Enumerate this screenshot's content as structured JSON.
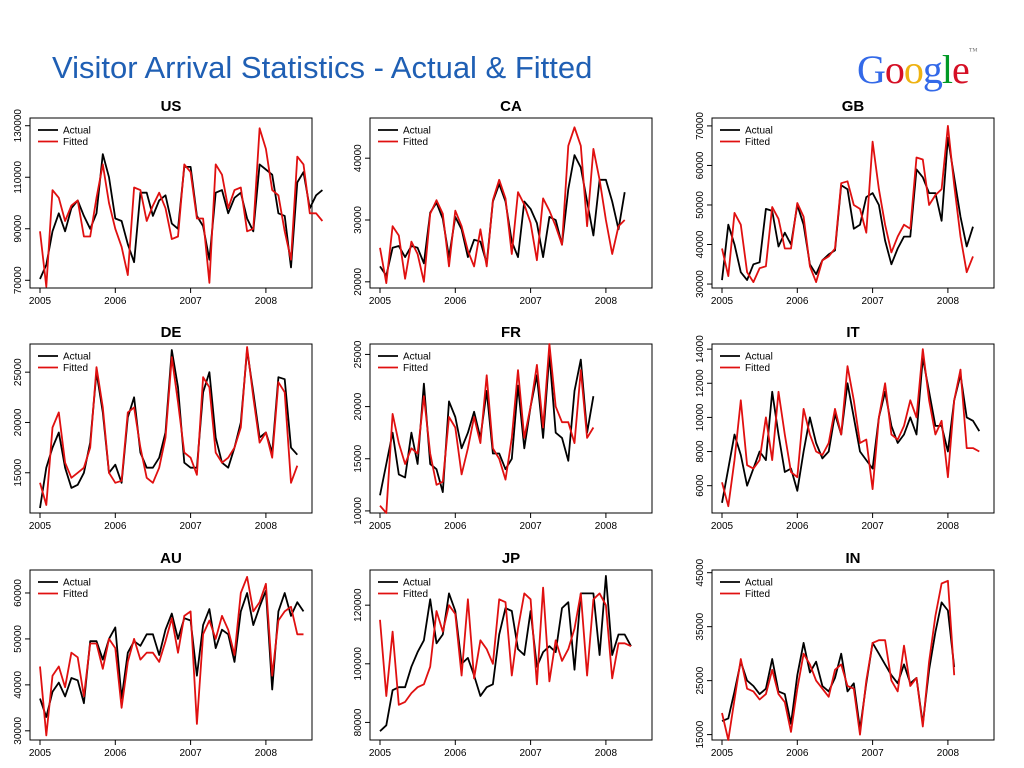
{
  "slide": {
    "title": "Visitor Arrival Statistics - Actual & Fitted",
    "logo_text": "Google",
    "logo_colors": [
      "#3369e8",
      "#d50f25",
      "#eeb211",
      "#3369e8",
      "#009925",
      "#d50f25"
    ]
  },
  "colors": {
    "actual": "#000000",
    "fitted": "#e01010"
  },
  "chart_data": [
    {
      "type": "line",
      "title": "US",
      "x_ticks": [
        "2005",
        "2006",
        "2007",
        "2008"
      ],
      "y_ticks": [
        70000,
        90000,
        110000,
        130000
      ],
      "ylim": [
        67000,
        133000
      ],
      "x_start": 2005,
      "x_step_months": 1,
      "legend": [
        "Actual",
        "Fitted"
      ],
      "legend_position": "top-left",
      "series": [
        {
          "name": "Actual",
          "values": [
            70500,
            76000,
            89000,
            96000,
            89000,
            98000,
            101000,
            95000,
            90000,
            96000,
            119000,
            110000,
            94000,
            93000,
            84000,
            77000,
            104000,
            104000,
            95000,
            101000,
            103000,
            92000,
            90000,
            114000,
            114000,
            95000,
            91000,
            78000,
            104000,
            105000,
            96000,
            102000,
            104000,
            94000,
            89000,
            115000,
            113000,
            111000,
            96000,
            95000,
            75000,
            108000,
            112000,
            98000,
            103000,
            105000
          ]
        },
        {
          "name": "Fitted",
          "values": [
            89000,
            67500,
            105000,
            102000,
            93000,
            99000,
            101000,
            87000,
            87000,
            102000,
            115000,
            100000,
            90000,
            83000,
            72000,
            106000,
            105000,
            93000,
            99000,
            104000,
            98000,
            86000,
            87000,
            115000,
            112000,
            94000,
            94000,
            69000,
            115000,
            111000,
            98000,
            105000,
            106000,
            89000,
            90000,
            129000,
            121000,
            105000,
            103000,
            89000,
            78000,
            118000,
            115000,
            96000,
            96000,
            93000
          ]
        }
      ]
    },
    {
      "type": "line",
      "title": "CA",
      "x_ticks": [
        "2005",
        "2006",
        "2007",
        "2008"
      ],
      "y_ticks": [
        20000,
        30000,
        40000
      ],
      "ylim": [
        19000,
        46500
      ],
      "x_start": 2005,
      "x_step_months": 1,
      "legend": [
        "Actual",
        "Fitted"
      ],
      "legend_position": "top-left",
      "series": [
        {
          "name": "Actual",
          "values": [
            22500,
            21000,
            25500,
            25800,
            24000,
            25800,
            25500,
            23000,
            31200,
            32800,
            30200,
            24000,
            30500,
            28500,
            24000,
            26800,
            26500,
            23000,
            33000,
            35800,
            33000,
            26500,
            24000,
            33000,
            31800,
            29500,
            24000,
            30500,
            30000,
            26000,
            35000,
            40500,
            38500,
            33000,
            27500,
            36500,
            36500,
            33000,
            28500,
            34500
          ]
        },
        {
          "name": "Fitted",
          "values": [
            25500,
            19800,
            29000,
            27500,
            20500,
            26500,
            24500,
            20000,
            31000,
            33200,
            31000,
            22500,
            31500,
            29000,
            25000,
            22500,
            28500,
            22500,
            33200,
            36500,
            33500,
            24500,
            34500,
            32500,
            29500,
            23500,
            33500,
            31500,
            29000,
            26000,
            42000,
            45000,
            42000,
            29000,
            41500,
            36500,
            30000,
            24500,
            29000,
            30000
          ]
        }
      ]
    },
    {
      "type": "line",
      "title": "GB",
      "x_ticks": [
        "2005",
        "2006",
        "2007",
        "2008"
      ],
      "y_ticks": [
        30000,
        40000,
        50000,
        60000,
        70000
      ],
      "ylim": [
        29000,
        72000
      ],
      "x_start": 2005,
      "x_step_months": 1,
      "legend": [
        "Actual",
        "Fitted"
      ],
      "legend_position": "top-left",
      "series": [
        {
          "name": "Actual",
          "values": [
            31000,
            45000,
            40000,
            33000,
            31000,
            35000,
            35500,
            49000,
            48500,
            39500,
            43000,
            40000,
            50000,
            45000,
            35000,
            32500,
            36000,
            37500,
            38500,
            55000,
            54000,
            44000,
            45000,
            52000,
            53000,
            50000,
            41000,
            35000,
            39000,
            42000,
            42000,
            59000,
            57000,
            53000,
            53000,
            46000,
            67000,
            57000,
            47000,
            39500,
            44500
          ]
        },
        {
          "name": "Fitted",
          "values": [
            39000,
            32000,
            48000,
            45000,
            33000,
            30500,
            34000,
            34500,
            49500,
            46500,
            39000,
            39000,
            50500,
            47000,
            34500,
            30500,
            36000,
            37000,
            39000,
            55500,
            56000,
            50000,
            49000,
            43000,
            66000,
            54000,
            45000,
            38000,
            42000,
            45000,
            44000,
            62000,
            61500,
            50000,
            52500,
            54000,
            70000,
            55000,
            42000,
            33000,
            37000
          ]
        }
      ]
    },
    {
      "type": "line",
      "title": "DE",
      "x_ticks": [
        "2005",
        "2006",
        "2007",
        "2008"
      ],
      "y_ticks": [
        15000,
        20000,
        25000
      ],
      "ylim": [
        11000,
        27800
      ],
      "x_start": 2005,
      "x_step_months": 1,
      "legend": [
        "Actual",
        "Fitted"
      ],
      "legend_position": "top-left",
      "series": [
        {
          "name": "Actual",
          "values": [
            11500,
            15500,
            17500,
            19000,
            15500,
            13500,
            13800,
            15000,
            18000,
            25000,
            21000,
            15000,
            15800,
            14000,
            20500,
            22500,
            17000,
            15500,
            15500,
            16500,
            19000,
            27200,
            23500,
            16000,
            15500,
            15500,
            23000,
            25000,
            18500,
            16000,
            15500,
            17500,
            20000,
            27200,
            23000,
            18500,
            19000,
            17000,
            24500,
            24300,
            17500,
            16800
          ]
        },
        {
          "name": "Fitted",
          "values": [
            14000,
            11800,
            19500,
            21000,
            16000,
            14500,
            15000,
            15500,
            17500,
            25500,
            21500,
            15000,
            14000,
            14200,
            21000,
            21500,
            17500,
            14500,
            14000,
            15500,
            18500,
            26500,
            22000,
            17000,
            16500,
            14800,
            24500,
            23500,
            17000,
            16000,
            16500,
            17500,
            19500,
            27500,
            22500,
            18000,
            19000,
            16500,
            24000,
            23000,
            14000,
            15700
          ]
        }
      ]
    },
    {
      "type": "line",
      "title": "FR",
      "x_ticks": [
        "2005",
        "2006",
        "2007",
        "2008"
      ],
      "y_ticks": [
        10000,
        15000,
        20000,
        25000
      ],
      "ylim": [
        9800,
        26000
      ],
      "x_start": 2005,
      "x_step_months": 1,
      "legend": [
        "Actual",
        "Fitted"
      ],
      "legend_position": "top-left",
      "series": [
        {
          "name": "Actual",
          "values": [
            11500,
            14500,
            17500,
            13500,
            13200,
            17500,
            14500,
            22200,
            14500,
            14000,
            11800,
            20500,
            19000,
            16000,
            17500,
            19500,
            17000,
            21500,
            15500,
            15500,
            14000,
            15000,
            22000,
            16000,
            20000,
            23000,
            17000,
            25000,
            17500,
            17000,
            14800,
            21500,
            24500,
            17500,
            21000
          ]
        },
        {
          "name": "Fitted",
          "values": [
            10500,
            9800,
            19300,
            16500,
            14500,
            16000,
            15500,
            21000,
            15500,
            12500,
            12800,
            19000,
            18000,
            13500,
            16000,
            19000,
            16500,
            23000,
            16000,
            15000,
            13000,
            17000,
            23500,
            17000,
            20000,
            24000,
            18000,
            26000,
            20000,
            18500,
            18500,
            16500,
            23500,
            17000,
            18000
          ]
        }
      ]
    },
    {
      "type": "line",
      "title": "IT",
      "x_ticks": [
        "2005",
        "2006",
        "2007",
        "2008"
      ],
      "y_ticks": [
        6000,
        8000,
        10000,
        12000,
        14000
      ],
      "ylim": [
        4400,
        14300
      ],
      "x_start": 2005,
      "x_step_months": 1,
      "legend": [
        "Actual",
        "Fitted"
      ],
      "legend_position": "top-left",
      "series": [
        {
          "name": "Actual",
          "values": [
            5000,
            7000,
            9000,
            7800,
            6000,
            7000,
            8000,
            7500,
            11500,
            9000,
            6800,
            7000,
            5700,
            8000,
            10000,
            8500,
            7600,
            8000,
            10200,
            9000,
            12000,
            10000,
            8000,
            7500,
            7000,
            10000,
            11500,
            9500,
            8500,
            9000,
            10000,
            9000,
            13500,
            11500,
            9500,
            9500,
            8000,
            11000,
            12500,
            10000,
            9800,
            9200
          ]
        },
        {
          "name": "Fitted",
          "values": [
            6200,
            4800,
            7500,
            11000,
            7200,
            7000,
            7500,
            10000,
            7500,
            11500,
            9000,
            6800,
            6500,
            10500,
            9000,
            8000,
            7800,
            8500,
            10500,
            9000,
            13000,
            11000,
            8500,
            8700,
            5800,
            10000,
            12000,
            9000,
            8700,
            9500,
            11000,
            10000,
            14000,
            11000,
            9000,
            9800,
            6500,
            11000,
            12800,
            8200,
            8200,
            8000
          ]
        }
      ]
    },
    {
      "type": "line",
      "title": "AU",
      "x_ticks": [
        "2005",
        "2006",
        "2007",
        "2008"
      ],
      "y_ticks": [
        30000,
        40000,
        50000,
        60000
      ],
      "ylim": [
        28000,
        65000
      ],
      "x_start": 2005,
      "x_step_months": 1,
      "legend": [
        "Actual",
        "Fitted"
      ],
      "legend_position": "top-left",
      "series": [
        {
          "name": "Actual",
          "values": [
            37000,
            33000,
            38500,
            40500,
            37500,
            41500,
            41000,
            36000,
            49500,
            49500,
            45500,
            50000,
            52500,
            37000,
            47000,
            49500,
            48500,
            51000,
            51000,
            46500,
            52000,
            55500,
            50000,
            54500,
            54000,
            42000,
            53000,
            56500,
            48000,
            52000,
            51000,
            45000,
            56000,
            60000,
            53000,
            57000,
            60500,
            39000,
            56000,
            60000,
            55000,
            58000,
            56000
          ]
        },
        {
          "name": "Fitted",
          "values": [
            44000,
            29000,
            42000,
            44000,
            39500,
            47000,
            46000,
            37500,
            49000,
            49000,
            43500,
            50000,
            48000,
            35000,
            45000,
            50000,
            45500,
            47000,
            47000,
            45000,
            49500,
            54500,
            47000,
            55000,
            56000,
            31500,
            51000,
            54000,
            50000,
            55000,
            52000,
            46500,
            60000,
            63500,
            56000,
            58000,
            62000,
            42000,
            54000,
            56000,
            57000,
            51000,
            51000
          ]
        }
      ]
    },
    {
      "type": "line",
      "title": "JP",
      "x_ticks": [
        "2005",
        "2006",
        "2007",
        "2008"
      ],
      "y_ticks": [
        80000,
        100000,
        120000
      ],
      "ylim": [
        74000,
        132000
      ],
      "x_start": 2005,
      "x_step_months": 1,
      "legend": [
        "Actual",
        "Fitted"
      ],
      "legend_position": "top-left",
      "series": [
        {
          "name": "Actual",
          "values": [
            77000,
            79000,
            91000,
            92000,
            92000,
            99000,
            104000,
            108000,
            122000,
            107000,
            110000,
            124000,
            118000,
            100000,
            102000,
            96000,
            89000,
            92000,
            93000,
            110000,
            119000,
            118000,
            105000,
            103000,
            118000,
            99000,
            104000,
            106000,
            104000,
            119000,
            121000,
            98000,
            124000,
            124000,
            124000,
            103000,
            130000,
            103000,
            110000,
            110000,
            106000
          ]
        },
        {
          "name": "Fitted",
          "values": [
            115000,
            89000,
            111000,
            86000,
            87000,
            90000,
            92000,
            93000,
            99000,
            118000,
            111000,
            120000,
            117000,
            96000,
            122000,
            95000,
            108000,
            105000,
            100000,
            122000,
            121000,
            96000,
            112000,
            124000,
            122000,
            93000,
            126000,
            94000,
            108000,
            101000,
            105000,
            112000,
            124000,
            96000,
            122000,
            124000,
            120000,
            95000,
            107000,
            107000,
            106000
          ]
        }
      ]
    },
    {
      "type": "line",
      "title": "IN",
      "x_ticks": [
        "2005",
        "2006",
        "2007",
        "2008"
      ],
      "y_ticks": [
        15000,
        25000,
        35000,
        45000
      ],
      "ylim": [
        14000,
        45500
      ],
      "x_start": 2005,
      "x_step_months": 1,
      "legend": [
        "Actual",
        "Fitted"
      ],
      "legend_position": "top-left",
      "series": [
        {
          "name": "Actual",
          "values": [
            17500,
            18000,
            23000,
            28500,
            25000,
            24000,
            22500,
            23500,
            29000,
            23000,
            22500,
            17000,
            26000,
            32000,
            26500,
            28500,
            24000,
            23000,
            25500,
            30000,
            23000,
            24500,
            16000,
            24500,
            32000,
            30000,
            28000,
            26000,
            24500,
            28000,
            24500,
            25500,
            17000,
            27000,
            34000,
            39500,
            38000,
            27500
          ]
        },
        {
          "name": "Fitted",
          "values": [
            19000,
            14000,
            21500,
            29000,
            23500,
            23000,
            21500,
            22500,
            27000,
            22500,
            21000,
            15500,
            23500,
            30000,
            28000,
            25000,
            23500,
            22000,
            27000,
            28000,
            24000,
            23500,
            15000,
            25000,
            32000,
            32500,
            32500,
            25000,
            23000,
            31500,
            24000,
            25500,
            16500,
            28500,
            37000,
            43000,
            43500,
            26000
          ]
        }
      ]
    }
  ]
}
